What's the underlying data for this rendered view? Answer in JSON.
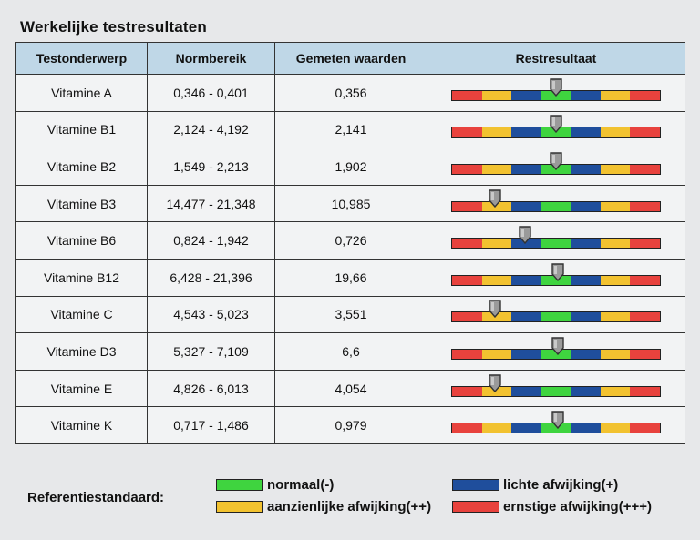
{
  "title": "Werkelijke testresultaten",
  "headers": {
    "subject": "Testonderwerp",
    "range": "Normbereik",
    "measured": "Gemeten waarden",
    "result": "Restresultaat"
  },
  "scale_colors": [
    "#e8423d",
    "#f2c230",
    "#1f4e9c",
    "#3fd43f",
    "#1f4e9c",
    "#f2c230",
    "#e8423d"
  ],
  "rows": [
    {
      "subject": "Vitamine A",
      "range": "0,346 - 0,401",
      "measured": "0,356",
      "marker": 0.5
    },
    {
      "subject": "Vitamine B1",
      "range": "2,124 - 4,192",
      "measured": "2,141",
      "marker": 0.5
    },
    {
      "subject": "Vitamine B2",
      "range": "1,549 - 2,213",
      "measured": "1,902",
      "marker": 0.5
    },
    {
      "subject": "Vitamine B3",
      "range": "14,477 - 21,348",
      "measured": "10,985",
      "marker": 0.21
    },
    {
      "subject": "Vitamine B6",
      "range": "0,824 - 1,942",
      "measured": "0,726",
      "marker": 0.35
    },
    {
      "subject": "Vitamine B12",
      "range": "6,428 - 21,396",
      "measured": "19,66",
      "marker": 0.51
    },
    {
      "subject": "Vitamine C",
      "range": "4,543 - 5,023",
      "measured": "3,551",
      "marker": 0.21
    },
    {
      "subject": "Vitamine D3",
      "range": "5,327 - 7,109",
      "measured": "6,6",
      "marker": 0.51
    },
    {
      "subject": "Vitamine E",
      "range": "4,826 - 6,013",
      "measured": "4,054",
      "marker": 0.21
    },
    {
      "subject": "Vitamine K",
      "range": "0,717 - 1,486",
      "measured": "0,979",
      "marker": 0.51
    }
  ],
  "legend": {
    "label": "Referentiestandaard:",
    "items": [
      {
        "text": "normaal(-)",
        "color": "#3fd43f"
      },
      {
        "text": "lichte afwijking(+)",
        "color": "#1f4e9c"
      },
      {
        "text": "aanzienlijke afwijking(++)",
        "color": "#f2c230"
      },
      {
        "text": "ernstige afwijking(+++)",
        "color": "#e8423d"
      }
    ]
  }
}
